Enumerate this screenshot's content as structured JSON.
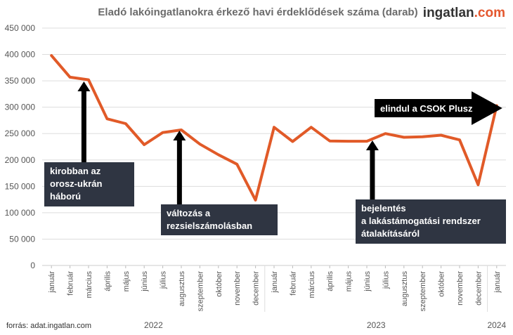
{
  "header": {
    "title": "Eladó lakóingatlanokra érkező havi érdeklődések száma (darab)",
    "brand_part1": "ingatlan",
    "brand_part2": ".com"
  },
  "footer": {
    "source": "forrás: adat.ingatlan.com"
  },
  "colors": {
    "line": "#e15a28",
    "grid": "#dddddd",
    "annotation_bg": "#2f3542",
    "arrow": "#000000",
    "brand_accent": "#e4572e"
  },
  "chart_data": {
    "type": "line",
    "title": "Eladó lakóingatlanokra érkező havi érdeklődések száma (darab)",
    "xlabel": "",
    "ylabel": "",
    "ylim": [
      0,
      450000
    ],
    "y_ticks": [
      0,
      50000,
      100000,
      150000,
      200000,
      250000,
      300000,
      350000,
      400000,
      450000
    ],
    "y_tick_labels": [
      "0",
      "50 000",
      "100 000",
      "150 000",
      "200 000",
      "250 000",
      "300 000",
      "350 000",
      "400 000",
      "450 000"
    ],
    "grid": true,
    "categories": [
      "január",
      "február",
      "március",
      "április",
      "május",
      "június",
      "július",
      "augusztus",
      "szeptember",
      "október",
      "november",
      "december",
      "január",
      "február",
      "március",
      "április",
      "május",
      "június",
      "július",
      "augusztus",
      "szeptember",
      "október",
      "november",
      "december",
      "január"
    ],
    "years": [
      {
        "label": "2022",
        "start": 0,
        "end": 11
      },
      {
        "label": "2023",
        "start": 12,
        "end": 23
      },
      {
        "label": "2024",
        "start": 24,
        "end": 24
      }
    ],
    "series": [
      {
        "values": [
          398000,
          357000,
          352000,
          278000,
          269000,
          229000,
          252000,
          257000,
          230000,
          210000,
          192000,
          124000,
          262000,
          235000,
          262000,
          236000,
          235500,
          235500,
          250000,
          243000,
          244000,
          247000,
          238000,
          153000,
          303000
        ]
      }
    ],
    "annotations": [
      {
        "lines": [
          "kirobban az",
          "orosz-ukrán",
          "háború"
        ],
        "index": 1.75,
        "arrow": "up"
      },
      {
        "lines": [
          "változás a",
          "rezsielszámolásban"
        ],
        "index": 6.9,
        "arrow": "up"
      },
      {
        "lines": [
          "bejelentés",
          "a lakástámogatási rendszer",
          "átalakításáról"
        ],
        "index": 17.3,
        "arrow": "up"
      },
      {
        "lines": [
          "elindul a CSOK Plusz"
        ],
        "index": 24,
        "arrow": "right"
      }
    ]
  }
}
